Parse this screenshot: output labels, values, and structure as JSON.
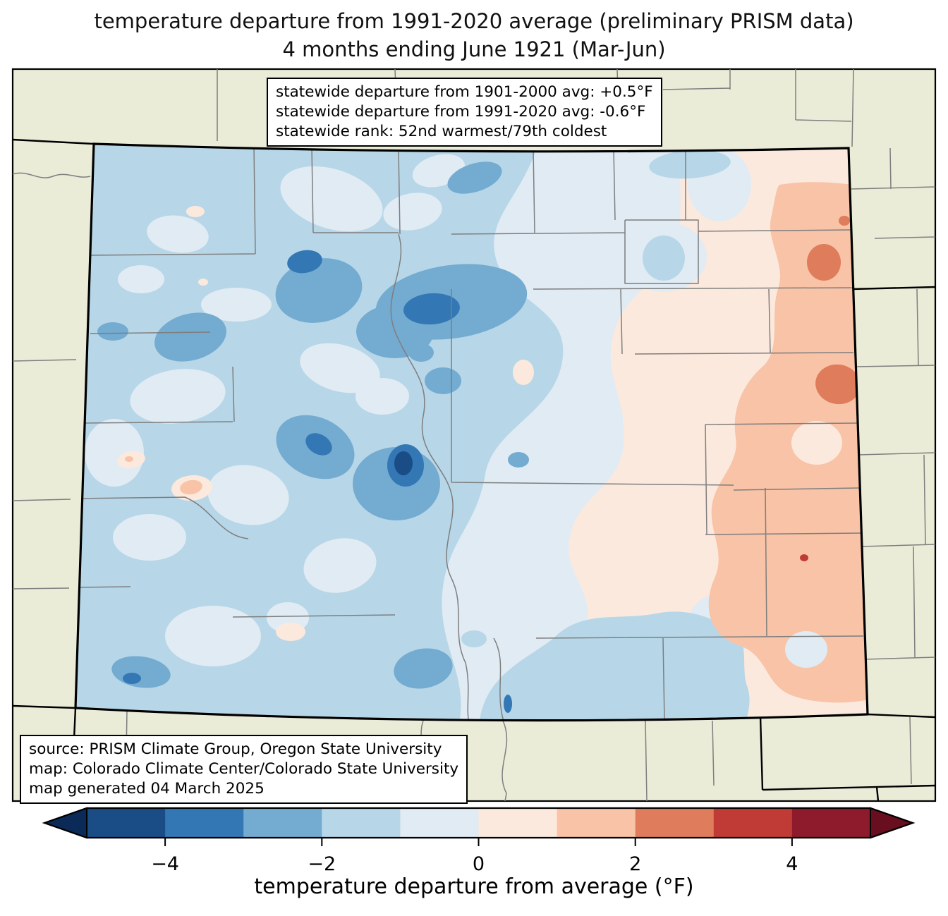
{
  "title": {
    "line1": "temperature departure from 1991-2020 average (preliminary PRISM data)",
    "line2": "4 months ending June 1921 (Mar-Jun)"
  },
  "stats_box": {
    "line1": "statewide departure from 1901-2000 avg: +0.5°F",
    "line2": "statewide departure from 1991-2020 avg: -0.6°F",
    "line3": "statewide rank: 52nd warmest/79th coldest"
  },
  "source_box": {
    "line1": "source: PRISM Climate Group, Oregon State University",
    "line2": "map: Colorado Climate Center/Colorado State University",
    "line3": "map generated 04 March 2025"
  },
  "colorbar": {
    "label": "temperature departure from average (°F)",
    "ticks": [
      "−4",
      "−2",
      "0",
      "2",
      "4"
    ],
    "tick_values": [
      -4,
      -2,
      0,
      2,
      4
    ],
    "range": [
      -5,
      5
    ],
    "segment_colors": [
      "#1a4c86",
      "#3377b4",
      "#74abd1",
      "#b7d7e8",
      "#e1ebf4",
      "#fce9dd",
      "#f8c3a6",
      "#df7c5c",
      "#c03b35",
      "#8e1b2c"
    ],
    "under_arrow_color": "#0b2a58",
    "over_arrow_color": "#690e1f"
  },
  "map": {
    "region": "Colorado",
    "background_land_color": "#eaecd8",
    "county_line_color": "#7e7e7e",
    "state_border_color": "#000000",
    "bin_edges": [
      -5,
      -4,
      -3,
      -2,
      -1,
      0,
      1,
      2,
      3,
      4,
      5
    ]
  }
}
